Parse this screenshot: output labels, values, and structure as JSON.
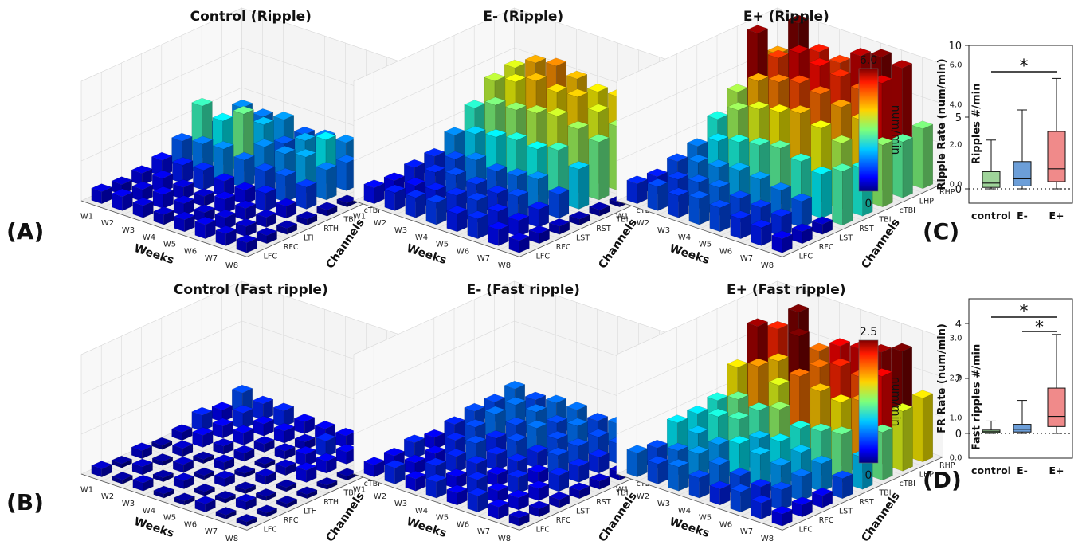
{
  "panel_labels": [
    "(A)",
    "(B)",
    "(C)",
    "(D)"
  ],
  "three_d": {
    "xlabel": "Weeks",
    "ylabel": "Channels",
    "weeks": [
      "W1",
      "W2",
      "W3",
      "W4",
      "W5",
      "W6",
      "W7",
      "W8"
    ],
    "channel_sets": {
      "control": [
        "LFC",
        "RFC",
        "LTH",
        "RTH",
        "TBI",
        "cTBI",
        "LHP",
        "RHP"
      ],
      "experimental": [
        "LFC",
        "RFC",
        "LST",
        "RST",
        "TBI",
        "cTBI",
        "LHP",
        "RHP"
      ]
    }
  },
  "colorbars": [
    {
      "label": "num/min",
      "max_label": "6.0",
      "min_label": "0"
    },
    {
      "label": "num/min",
      "max_label": "2.5",
      "min_label": "0"
    }
  ],
  "chart_data": [
    {
      "type": "bar3d",
      "title": "Control (Ripple)",
      "zlabel": "Ripples #/min",
      "zticks": [
        "0.0",
        "2.0",
        "4.0",
        "6.0"
      ],
      "zlim": [
        0,
        6
      ],
      "channels_set": "control",
      "values": [
        [
          0.6,
          0.7,
          0.6,
          0.5,
          0.6,
          0.7,
          0.6,
          0.5
        ],
        [
          0.5,
          0.6,
          0.7,
          0.6,
          0.5,
          0.6,
          0.5,
          0.4
        ],
        [
          0.6,
          0.7,
          0.6,
          0.5,
          0.7,
          0.6,
          0.5,
          0.3
        ],
        [
          0.8,
          0.9,
          1.0,
          0.8,
          0.7,
          0.9,
          0.6,
          0.3
        ],
        [
          1.3,
          1.5,
          1.6,
          1.4,
          1.2,
          1.3,
          1.1,
          0.3
        ],
        [
          2.6,
          2.2,
          2.9,
          1.6,
          1.6,
          1.8,
          1.5,
          0.2
        ],
        [
          1.2,
          1.1,
          1.9,
          1.3,
          1.8,
          2.2,
          1.4,
          0.2
        ],
        [
          1.6,
          1.5,
          1.7,
          1.3,
          1.5,
          1.6,
          1.8,
          0.3
        ]
      ]
    },
    {
      "type": "bar3d",
      "title": "E- (Ripple)",
      "zlabel": "Ripples #/min",
      "zticks": [
        "0.0",
        "2.0",
        "4.0",
        "6.0"
      ],
      "zlim": [
        0,
        6
      ],
      "channels_set": "experimental",
      "values": [
        [
          0.8,
          0.9,
          1.0,
          1.1,
          0.9,
          1.0,
          0.8,
          0.6
        ],
        [
          0.7,
          0.8,
          0.9,
          1.0,
          1.1,
          0.9,
          0.8,
          0.5
        ],
        [
          0.9,
          1.0,
          1.2,
          1.1,
          1.0,
          1.2,
          0.9,
          0.4
        ],
        [
          1.0,
          1.2,
          1.5,
          1.3,
          1.4,
          1.6,
          1.2,
          0.3
        ],
        [
          1.6,
          2.0,
          2.2,
          2.4,
          2.3,
          2.6,
          2.0,
          0.3
        ],
        [
          2.5,
          3.0,
          3.1,
          3.3,
          3.5,
          3.2,
          2.9,
          0.2
        ],
        [
          3.4,
          3.7,
          4.1,
          3.9,
          4.0,
          3.6,
          3.2,
          0.3
        ],
        [
          3.6,
          4.2,
          4.4,
          4.1,
          3.8,
          3.9,
          3.5,
          0.3
        ]
      ]
    },
    {
      "type": "bar3d",
      "title": "E+ (Ripple)",
      "zlabel": "Ripples #/min",
      "zticks": [
        "0.0",
        "2.0",
        "4.0",
        "6.0"
      ],
      "zlim": [
        0,
        6
      ],
      "channels_set": "experimental",
      "values": [
        [
          1.0,
          1.2,
          1.1,
          1.3,
          1.2,
          1.0,
          0.9,
          0.7
        ],
        [
          0.9,
          1.1,
          1.3,
          1.4,
          1.2,
          1.1,
          1.0,
          0.6
        ],
        [
          1.2,
          1.5,
          1.6,
          1.8,
          1.7,
          1.5,
          1.3,
          0.5
        ],
        [
          1.5,
          2.1,
          2.4,
          2.6,
          2.8,
          2.5,
          2.2,
          2.7
        ],
        [
          2.4,
          3.2,
          3.6,
          3.8,
          4.1,
          3.7,
          3.3,
          2.4
        ],
        [
          3.3,
          4.2,
          4.5,
          4.8,
          4.6,
          4.3,
          4.0,
          3.1
        ],
        [
          5.8,
          4.9,
          5.5,
          5.2,
          5.0,
          4.7,
          5.4,
          2.8
        ],
        [
          4.3,
          6.2,
          5.1,
          4.9,
          5.6,
          5.9,
          5.7,
          3.0
        ]
      ]
    },
    {
      "type": "bar3d",
      "title": "Control (Fast ripple)",
      "zlabel": "Fast ripples #/min",
      "zticks": [
        "0.0",
        "1.0",
        "2.0",
        "3.0"
      ],
      "zlim": [
        0,
        3
      ],
      "channels_set": "control",
      "values": [
        [
          0.2,
          0.1,
          0.2,
          0.1,
          0.1,
          0.2,
          0.1,
          0.1
        ],
        [
          0.1,
          0.2,
          0.1,
          0.2,
          0.1,
          0.1,
          0.2,
          0.1
        ],
        [
          0.2,
          0.1,
          0.2,
          0.1,
          0.2,
          0.1,
          0.1,
          0.1
        ],
        [
          0.1,
          0.2,
          0.1,
          0.2,
          0.1,
          0.2,
          0.1,
          0.1
        ],
        [
          0.2,
          0.3,
          0.2,
          0.2,
          0.1,
          0.2,
          0.3,
          0.1
        ],
        [
          0.4,
          0.3,
          0.3,
          0.2,
          0.2,
          0.3,
          0.3,
          0.1
        ],
        [
          0.3,
          0.4,
          0.3,
          0.3,
          0.2,
          0.4,
          0.3,
          0.1
        ],
        [
          0.5,
          0.4,
          0.4,
          0.3,
          0.3,
          0.3,
          0.4,
          0.1
        ]
      ]
    },
    {
      "type": "bar3d",
      "title": "E- (Fast ripple)",
      "zlabel": "Fast ripples #/min",
      "zticks": [
        "0.0",
        "1.0",
        "2.0",
        "3.0"
      ],
      "zlim": [
        0,
        3
      ],
      "channels_set": "experimental",
      "values": [
        [
          0.3,
          0.4,
          0.3,
          0.4,
          0.3,
          0.4,
          0.3,
          0.2
        ],
        [
          0.3,
          0.3,
          0.4,
          0.3,
          0.4,
          0.3,
          0.3,
          0.2
        ],
        [
          0.4,
          0.3,
          0.4,
          0.4,
          0.3,
          0.4,
          0.3,
          0.2
        ],
        [
          0.3,
          0.4,
          0.5,
          0.4,
          0.4,
          0.3,
          0.4,
          0.2
        ],
        [
          0.4,
          0.5,
          0.4,
          0.5,
          0.4,
          0.5,
          0.4,
          0.2
        ],
        [
          0.5,
          0.6,
          0.5,
          0.6,
          0.5,
          0.5,
          0.4,
          0.2
        ],
        [
          0.5,
          0.6,
          0.6,
          0.5,
          0.6,
          0.5,
          0.5,
          0.2
        ],
        [
          0.6,
          0.5,
          0.6,
          0.6,
          0.5,
          0.6,
          0.5,
          0.2
        ]
      ]
    },
    {
      "type": "bar3d",
      "title": "E+ (Fast ripple)",
      "zlabel": "Fast ripples #/min",
      "zticks": [
        "0.0",
        "1.0",
        "2.0",
        "3.0"
      ],
      "zlim": [
        0,
        3
      ],
      "channels_set": "experimental",
      "values": [
        [
          0.6,
          0.5,
          0.6,
          0.5,
          0.4,
          0.5,
          0.4,
          0.3
        ],
        [
          0.5,
          0.6,
          0.7,
          0.6,
          0.5,
          0.4,
          0.5,
          0.3
        ],
        [
          0.9,
          0.8,
          0.7,
          0.9,
          0.8,
          0.7,
          0.6,
          0.3
        ],
        [
          0.9,
          1.0,
          1.1,
          0.8,
          0.9,
          0.8,
          0.7,
          0.5
        ],
        [
          1.0,
          1.2,
          1.1,
          1.3,
          1.0,
          1.1,
          1.2,
          0.8
        ],
        [
          1.6,
          1.8,
          1.5,
          1.9,
          1.7,
          1.6,
          1.8,
          1.2
        ],
        [
          2.4,
          1.7,
          2.5,
          1.9,
          2.1,
          2.0,
          2.2,
          1.5
        ],
        [
          2.1,
          2.7,
          1.9,
          2.2,
          2.3,
          2.4,
          2.6,
          1.6
        ]
      ]
    },
    {
      "type": "box",
      "ylabel": "Ripple Rate  (num/min)",
      "categories": [
        "control",
        "E-",
        "E+"
      ],
      "yticks": [
        "0",
        "5",
        "10"
      ],
      "ylim": [
        -1,
        10
      ],
      "colors": [
        "#9fd49a",
        "#6c9ed8",
        "#f08a8a"
      ],
      "boxes": [
        {
          "min": 0.0,
          "q1": 0.1,
          "median": 0.4,
          "q3": 1.2,
          "max": 3.4
        },
        {
          "min": 0.0,
          "q1": 0.2,
          "median": 0.7,
          "q3": 1.9,
          "max": 5.5
        },
        {
          "min": 0.0,
          "q1": 0.5,
          "median": 1.4,
          "q3": 4.0,
          "max": 7.7
        }
      ],
      "significance": [
        {
          "from": 0,
          "to": 2,
          "label": "*"
        }
      ]
    },
    {
      "type": "box",
      "ylabel": "FR Rate  (num/min)",
      "categories": [
        "control",
        "E-",
        "E+"
      ],
      "yticks": [
        "0",
        "2",
        "4"
      ],
      "ylim": [
        -0.9,
        4.9
      ],
      "colors": [
        "#9fd49a",
        "#6c9ed8",
        "#f08a8a"
      ],
      "boxes": [
        {
          "min": 0.0,
          "q1": 0.02,
          "median": 0.06,
          "q3": 0.12,
          "max": 0.45
        },
        {
          "min": 0.0,
          "q1": 0.05,
          "median": 0.15,
          "q3": 0.33,
          "max": 1.2
        },
        {
          "min": 0.0,
          "q1": 0.25,
          "median": 0.62,
          "q3": 1.65,
          "max": 3.6
        }
      ],
      "significance": [
        {
          "from": 0,
          "to": 2,
          "label": "*"
        },
        {
          "from": 1,
          "to": 2,
          "label": "*"
        }
      ]
    }
  ]
}
